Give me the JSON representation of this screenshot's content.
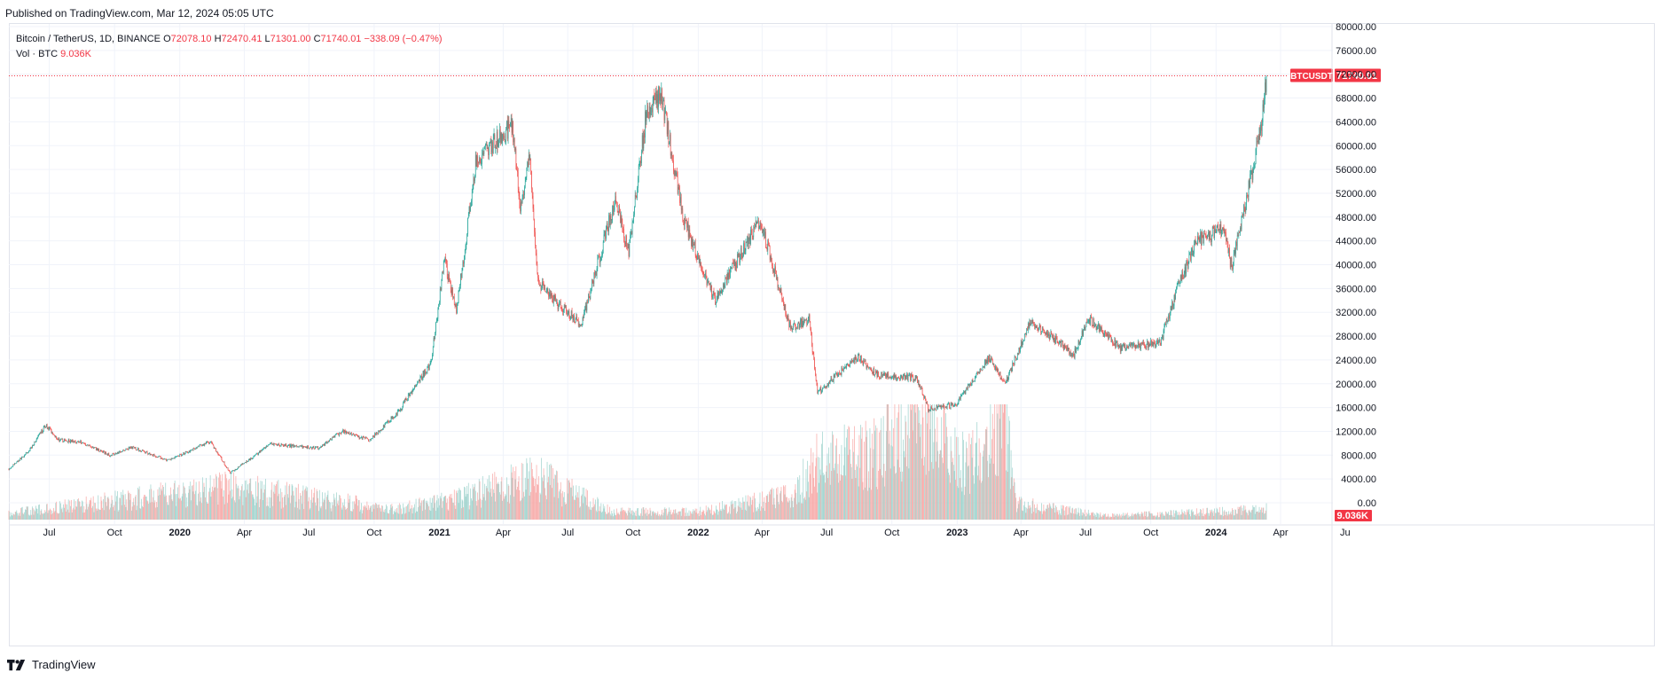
{
  "header": {
    "published": "Published on TradingView.com, Mar 12, 2024 05:05 UTC"
  },
  "legend": {
    "symbol": "Bitcoin / TetherUS, 1D, BINANCE",
    "o_label": "O",
    "o_value": "72078.10",
    "h_label": "H",
    "h_value": "72470.41",
    "l_label": "L",
    "l_value": "71301.00",
    "c_label": "C",
    "c_value": "71740.01",
    "change": "−338.09 (−0.47%)",
    "vol_label": "Vol · BTC",
    "vol_value": "9.036K"
  },
  "footer": {
    "brand": "TradingView"
  },
  "colors": {
    "up": "#26a69a",
    "down": "#ef5350",
    "vol_up": "#9fd3cd",
    "vol_down": "#f7a9a7",
    "badge": "#f23645",
    "grid": "#f0f3fa",
    "axis_text": "#131722"
  },
  "chart_data": {
    "type": "candlestick",
    "title": "Bitcoin / TetherUS, 1D, BINANCE",
    "ylim": [
      0,
      80000
    ],
    "y_ticks": [
      "80000.00",
      "76000.00",
      "72000.00",
      "68000.00",
      "64000.00",
      "60000.00",
      "56000.00",
      "52000.00",
      "48000.00",
      "44000.00",
      "40000.00",
      "36000.00",
      "32000.00",
      "28000.00",
      "24000.00",
      "20000.00",
      "16000.00",
      "12000.00",
      "8000.00",
      "4000.00",
      "0.00"
    ],
    "x_ticks": [
      "Jul",
      "Oct",
      "2020",
      "Apr",
      "Jul",
      "Oct",
      "2021",
      "Apr",
      "Jul",
      "Oct",
      "2022",
      "Apr",
      "Jul",
      "Oct",
      "2023",
      "Apr",
      "Jul",
      "Oct",
      "2024",
      "Apr",
      "Ju"
    ],
    "x_range": [
      "2019-05-05",
      "2024-06-10"
    ],
    "price_badge": {
      "symbol": "BTCUSDT",
      "value": "71740.01"
    },
    "volume_badge": "9.036K",
    "last_price": 71740.01,
    "price_path": [
      {
        "date": "2019-05-05",
        "price": 5700
      },
      {
        "date": "2019-06-01",
        "price": 8500
      },
      {
        "date": "2019-06-26",
        "price": 13000
      },
      {
        "date": "2019-07-15",
        "price": 10500
      },
      {
        "date": "2019-08-15",
        "price": 10200
      },
      {
        "date": "2019-09-24",
        "price": 8000
      },
      {
        "date": "2019-10-26",
        "price": 9300
      },
      {
        "date": "2019-12-15",
        "price": 7100
      },
      {
        "date": "2020-02-13",
        "price": 10300
      },
      {
        "date": "2020-03-12",
        "price": 5000
      },
      {
        "date": "2020-05-08",
        "price": 9800
      },
      {
        "date": "2020-07-15",
        "price": 9200
      },
      {
        "date": "2020-08-17",
        "price": 12000
      },
      {
        "date": "2020-09-25",
        "price": 10500
      },
      {
        "date": "2020-11-05",
        "price": 15500
      },
      {
        "date": "2020-12-20",
        "price": 23500
      },
      {
        "date": "2021-01-08",
        "price": 41000
      },
      {
        "date": "2021-01-25",
        "price": 32000
      },
      {
        "date": "2021-02-21",
        "price": 57000
      },
      {
        "date": "2021-04-14",
        "price": 63500
      },
      {
        "date": "2021-04-25",
        "price": 49000
      },
      {
        "date": "2021-05-08",
        "price": 58000
      },
      {
        "date": "2021-05-20",
        "price": 37000
      },
      {
        "date": "2021-06-20",
        "price": 33000
      },
      {
        "date": "2021-07-20",
        "price": 30000
      },
      {
        "date": "2021-09-06",
        "price": 51000
      },
      {
        "date": "2021-09-25",
        "price": 42000
      },
      {
        "date": "2021-10-20",
        "price": 66000
      },
      {
        "date": "2021-11-10",
        "price": 68500
      },
      {
        "date": "2021-12-10",
        "price": 48000
      },
      {
        "date": "2022-01-24",
        "price": 34000
      },
      {
        "date": "2022-03-29",
        "price": 47500
      },
      {
        "date": "2022-05-12",
        "price": 29000
      },
      {
        "date": "2022-06-06",
        "price": 31000
      },
      {
        "date": "2022-06-18",
        "price": 18500
      },
      {
        "date": "2022-08-14",
        "price": 24500
      },
      {
        "date": "2022-09-10",
        "price": 21500
      },
      {
        "date": "2022-11-05",
        "price": 21000
      },
      {
        "date": "2022-11-21",
        "price": 15800
      },
      {
        "date": "2022-12-30",
        "price": 16500
      },
      {
        "date": "2023-02-15",
        "price": 24500
      },
      {
        "date": "2023-03-10",
        "price": 20000
      },
      {
        "date": "2023-04-14",
        "price": 30500
      },
      {
        "date": "2023-06-15",
        "price": 25000
      },
      {
        "date": "2023-07-05",
        "price": 31000
      },
      {
        "date": "2023-08-18",
        "price": 26000
      },
      {
        "date": "2023-10-15",
        "price": 27000
      },
      {
        "date": "2023-11-10",
        "price": 37000
      },
      {
        "date": "2023-12-05",
        "price": 44000
      },
      {
        "date": "2024-01-11",
        "price": 46000
      },
      {
        "date": "2024-01-23",
        "price": 39500
      },
      {
        "date": "2024-02-15",
        "price": 52000
      },
      {
        "date": "2024-03-05",
        "price": 64000
      },
      {
        "date": "2024-03-12",
        "price": 71740
      }
    ],
    "volume_path": [
      {
        "date": "2019-05-05",
        "value": 25000
      },
      {
        "date": "2020-03-12",
        "value": 120000
      },
      {
        "date": "2020-11-01",
        "value": 40000
      },
      {
        "date": "2021-01-10",
        "value": 70000
      },
      {
        "date": "2021-05-19",
        "value": 160000
      },
      {
        "date": "2021-09-01",
        "value": 30000
      },
      {
        "date": "2022-01-01",
        "value": 30000
      },
      {
        "date": "2022-05-12",
        "value": 90000
      },
      {
        "date": "2022-06-18",
        "value": 220000
      },
      {
        "date": "2022-09-01",
        "value": 250000
      },
      {
        "date": "2022-11-09",
        "value": 380000
      },
      {
        "date": "2023-01-15",
        "value": 200000
      },
      {
        "date": "2023-03-10",
        "value": 410000
      },
      {
        "date": "2023-03-25",
        "value": 60000
      },
      {
        "date": "2023-08-01",
        "value": 15000
      },
      {
        "date": "2024-01-01",
        "value": 30000
      },
      {
        "date": "2024-03-12",
        "value": 40000
      }
    ]
  }
}
